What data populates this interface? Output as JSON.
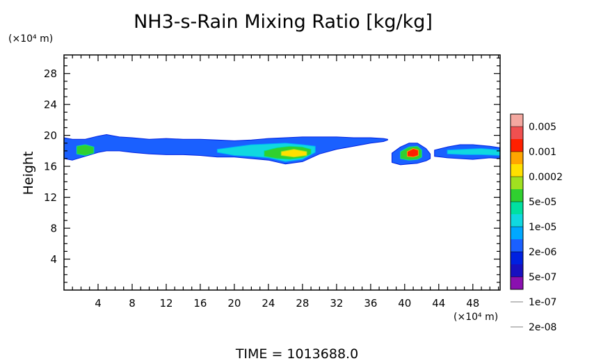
{
  "chart_data": {
    "type": "heatmap",
    "title": "NH3-s-Rain Mixing Ratio [kg/kg]",
    "ylabel": "Height",
    "xunit": "(×10⁴ m)",
    "yunit": "(×10⁴ m)",
    "footer": "TIME = 1013688.0",
    "xlim": [
      0,
      51.2
    ],
    "ylim": [
      0,
      30.4
    ],
    "x_major_ticks": [
      4,
      8,
      12,
      16,
      20,
      24,
      28,
      32,
      36,
      40,
      44,
      48
    ],
    "x_tick_labels": [
      "4",
      "8",
      "12",
      "16",
      "20",
      "24",
      "28",
      "32",
      "36",
      "40",
      "44",
      "48"
    ],
    "y_major_ticks": [
      4,
      8,
      12,
      16,
      20,
      24,
      28
    ],
    "y_tick_labels": [
      "4",
      "8",
      "12",
      "16",
      "20",
      "24",
      "28"
    ],
    "colorbar": {
      "labels": [
        "0.005",
        "0.001",
        "0.0002",
        "5e-05",
        "1e-05",
        "2e-06",
        "5e-07",
        "1e-07",
        "2e-08"
      ],
      "colors": [
        "#f4a8a0",
        "#f05050",
        "#ff2000",
        "#ffa500",
        "#ffe000",
        "#a0e020",
        "#30d030",
        "#00e0a0",
        "#10d8e0",
        "#00a8ff",
        "#1a60ff",
        "#0020e0",
        "#1810c0",
        "#8a10b0"
      ]
    },
    "cloud_layers": [
      {
        "x": [
          0.0,
          1.0,
          2.5,
          4.0,
          5.0,
          6.5,
          8.0,
          10.0,
          12.0,
          14.0,
          16.0,
          18.0,
          20.0,
          22.0,
          24.0,
          26.0,
          28.0,
          30.0,
          32.0,
          34.0,
          36.0,
          37.5,
          38.0
        ],
        "bottom": [
          17.0,
          16.8,
          17.3,
          17.8,
          18.0,
          18.0,
          17.8,
          17.6,
          17.5,
          17.5,
          17.4,
          17.2,
          17.2,
          17.0,
          16.8,
          16.3,
          16.6,
          17.6,
          18.2,
          18.6,
          19.0,
          19.2,
          19.4
        ],
        "top": [
          19.7,
          19.5,
          19.5,
          19.9,
          20.1,
          19.8,
          19.7,
          19.5,
          19.6,
          19.5,
          19.5,
          19.4,
          19.3,
          19.4,
          19.6,
          19.7,
          19.8,
          19.8,
          19.8,
          19.7,
          19.7,
          19.6,
          19.5
        ],
        "level": 3
      },
      {
        "x": [
          1.5,
          2.5,
          3.5
        ],
        "bottom": [
          17.6,
          17.4,
          17.7
        ],
        "top": [
          18.6,
          18.8,
          18.5
        ],
        "level": 7
      },
      {
        "x": [
          18.0,
          20.0,
          22.0,
          24.0,
          26.0,
          28.0,
          29.5
        ],
        "bottom": [
          17.8,
          17.4,
          17.3,
          17.1,
          16.6,
          16.9,
          17.8
        ],
        "top": [
          18.2,
          18.5,
          18.8,
          18.9,
          19.0,
          18.8,
          18.6
        ],
        "level": 5
      },
      {
        "x": [
          23.5,
          25.0,
          26.5,
          28.0,
          29.0
        ],
        "bottom": [
          17.3,
          17.0,
          16.9,
          17.1,
          17.6
        ],
        "top": [
          18.0,
          18.4,
          18.6,
          18.5,
          18.2
        ],
        "level": 7
      },
      {
        "x": [
          25.5,
          27.0,
          28.5
        ],
        "bottom": [
          17.4,
          17.2,
          17.4
        ],
        "top": [
          17.9,
          18.2,
          17.9
        ],
        "level": 9
      },
      {
        "x": [
          38.5,
          39.5,
          40.5,
          41.5,
          42.5,
          43.0
        ],
        "bottom": [
          16.5,
          16.2,
          16.3,
          16.4,
          16.7,
          17.0
        ],
        "top": [
          17.7,
          18.5,
          19.0,
          19.0,
          18.3,
          17.6
        ],
        "level": 3
      },
      {
        "x": [
          39.5,
          40.5,
          41.5,
          42.0
        ],
        "bottom": [
          17.0,
          16.8,
          16.9,
          17.2
        ],
        "top": [
          17.9,
          18.5,
          18.6,
          18.1
        ],
        "level": 7
      },
      {
        "x": [
          40.3,
          41.0,
          41.6
        ],
        "bottom": [
          17.3,
          17.2,
          17.4
        ],
        "top": [
          17.9,
          18.3,
          18.1
        ],
        "level": 11
      },
      {
        "x": [
          43.5,
          45.0,
          46.5,
          48.0,
          50.0,
          51.2
        ],
        "bottom": [
          17.3,
          17.1,
          17.0,
          16.9,
          17.1,
          17.0
        ],
        "top": [
          18.1,
          18.5,
          18.8,
          18.8,
          18.6,
          18.4
        ],
        "level": 3
      },
      {
        "x": [
          45.0,
          47.0,
          49.0,
          51.2
        ],
        "bottom": [
          17.6,
          17.5,
          17.5,
          17.4
        ],
        "top": [
          18.1,
          18.2,
          18.3,
          18.1
        ],
        "level": 5
      }
    ]
  }
}
